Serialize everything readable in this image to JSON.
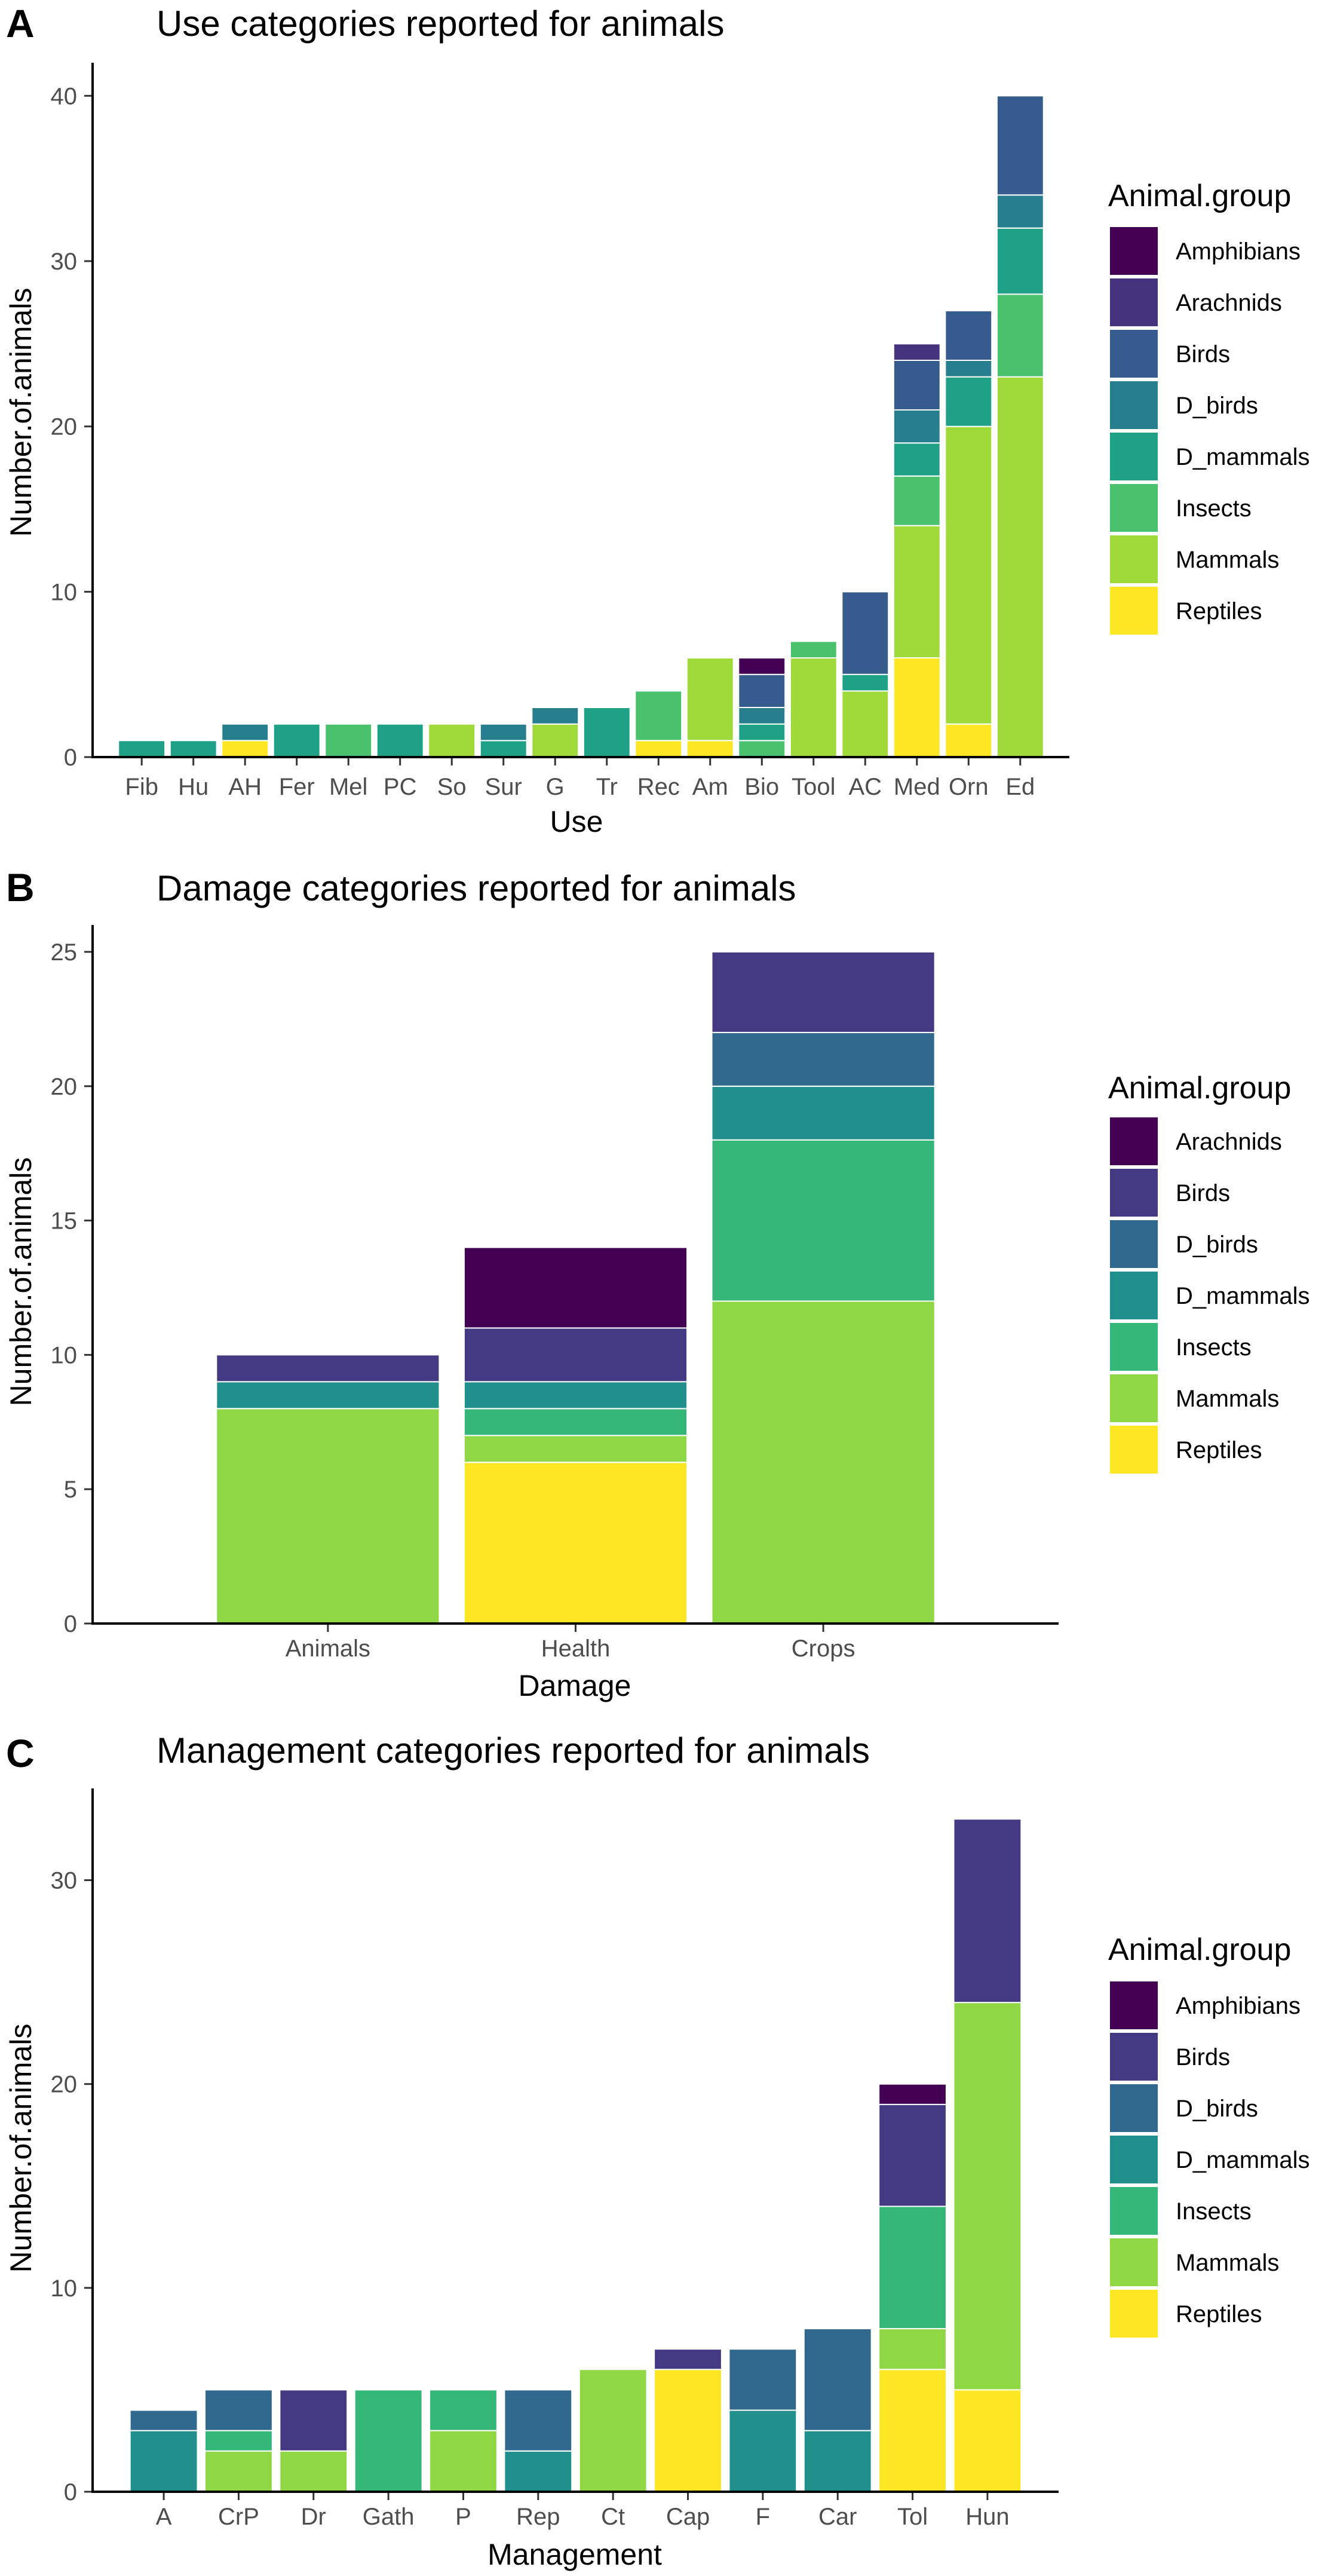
{
  "colors": {
    "Amphibians": "#440154",
    "Arachnids": "#46337E",
    "Birds": "#365C8D",
    "D_birds": "#277F8E",
    "D_mammals": "#1FA187",
    "Insects": "#4AC16D",
    "Mammals": "#9FDA3A",
    "Reptiles": "#FDE725",
    "B.Arachnids": "#440154",
    "B.Birds": "#443A83",
    "B.D_birds": "#31688E",
    "B.D_mammals": "#21908D",
    "B.Insects": "#35B779",
    "B.Mammals": "#8FD744",
    "B.Reptiles": "#FDE725",
    "C.Amphibians": "#440154",
    "C.Birds": "#443A83",
    "C.D_birds": "#31688E",
    "C.D_mammals": "#21908D",
    "C.Insects": "#35B779",
    "C.Mammals": "#8FD744",
    "C.Reptiles": "#FDE725"
  },
  "chart_data": [
    {
      "panel": "A",
      "type": "bar",
      "stacked": true,
      "title": "Use categories reported for animals",
      "xlabel": "Use",
      "ylabel": "Number.of.animals",
      "ylim": [
        0,
        42
      ],
      "yticks": [
        0,
        10,
        20,
        30,
        40
      ],
      "legend_title": "Animal.group",
      "legend_position": "right",
      "categories": [
        "Fib",
        "Hu",
        "AH",
        "Fer",
        "Mel",
        "PC",
        "So",
        "Sur",
        "G",
        "Tr",
        "Rec",
        "Am",
        "Bio",
        "Tool",
        "AC",
        "Med",
        "Orn",
        "Ed"
      ],
      "series": [
        {
          "name": "Amphibians",
          "color_key": "Amphibians",
          "values": [
            0,
            0,
            0,
            0,
            0,
            0,
            0,
            0,
            0,
            0,
            0,
            0,
            1,
            0,
            0,
            0,
            0,
            0
          ]
        },
        {
          "name": "Arachnids",
          "color_key": "Arachnids",
          "values": [
            0,
            0,
            0,
            0,
            0,
            0,
            0,
            0,
            0,
            0,
            0,
            0,
            0,
            0,
            0,
            1,
            0,
            0
          ]
        },
        {
          "name": "Birds",
          "color_key": "Birds",
          "values": [
            0,
            0,
            0,
            0,
            0,
            0,
            0,
            0,
            0,
            0,
            0,
            0,
            2,
            0,
            5,
            3,
            3,
            6
          ]
        },
        {
          "name": "D_birds",
          "color_key": "D_birds",
          "values": [
            0,
            0,
            1,
            0,
            0,
            0,
            0,
            1,
            1,
            0,
            0,
            0,
            1,
            0,
            0,
            2,
            1,
            2
          ]
        },
        {
          "name": "D_mammals",
          "color_key": "D_mammals",
          "values": [
            1,
            1,
            0,
            2,
            0,
            2,
            0,
            1,
            0,
            3,
            0,
            0,
            1,
            0,
            1,
            2,
            3,
            4
          ]
        },
        {
          "name": "Insects",
          "color_key": "Insects",
          "values": [
            0,
            0,
            0,
            0,
            2,
            0,
            0,
            0,
            0,
            0,
            3,
            0,
            1,
            1,
            0,
            3,
            0,
            5
          ]
        },
        {
          "name": "Mammals",
          "color_key": "Mammals",
          "values": [
            0,
            0,
            0,
            0,
            0,
            0,
            2,
            0,
            2,
            0,
            0,
            5,
            0,
            6,
            4,
            8,
            18,
            23
          ]
        },
        {
          "name": "Reptiles",
          "color_key": "Reptiles",
          "values": [
            0,
            0,
            1,
            0,
            0,
            0,
            0,
            0,
            0,
            0,
            1,
            1,
            0,
            0,
            0,
            6,
            2,
            0
          ]
        }
      ]
    },
    {
      "panel": "B",
      "type": "bar",
      "stacked": true,
      "title": "Damage categories reported for animals",
      "xlabel": "Damage",
      "ylabel": "Number.of.animals",
      "ylim": [
        0,
        26
      ],
      "yticks": [
        0,
        5,
        10,
        15,
        20,
        25
      ],
      "legend_title": "Animal.group",
      "legend_position": "right",
      "categories": [
        "Animals",
        "Health",
        "Crops"
      ],
      "series": [
        {
          "name": "Arachnids",
          "color_key": "B.Arachnids",
          "values": [
            0,
            3,
            0
          ]
        },
        {
          "name": "Birds",
          "color_key": "B.Birds",
          "values": [
            1,
            2,
            3
          ]
        },
        {
          "name": "D_birds",
          "color_key": "B.D_birds",
          "values": [
            0,
            0,
            2
          ]
        },
        {
          "name": "D_mammals",
          "color_key": "B.D_mammals",
          "values": [
            1,
            1,
            2
          ]
        },
        {
          "name": "Insects",
          "color_key": "B.Insects",
          "values": [
            0,
            1,
            6
          ]
        },
        {
          "name": "Mammals",
          "color_key": "B.Mammals",
          "values": [
            8,
            1,
            12
          ]
        },
        {
          "name": "Reptiles",
          "color_key": "B.Reptiles",
          "values": [
            0,
            6,
            0
          ]
        }
      ]
    },
    {
      "panel": "C",
      "type": "bar",
      "stacked": true,
      "title": "Management categories reported for animals",
      "xlabel": "Management",
      "ylabel": "Number.of.animals",
      "ylim": [
        0,
        34.5
      ],
      "yticks": [
        0,
        10,
        20,
        30
      ],
      "legend_title": "Animal.group",
      "legend_position": "right",
      "categories": [
        "A",
        "CrP",
        "Dr",
        "Gath",
        "P",
        "Rep",
        "Ct",
        "Cap",
        "F",
        "Car",
        "Tol",
        "Hun"
      ],
      "series": [
        {
          "name": "Amphibians",
          "color_key": "C.Amphibians",
          "values": [
            0,
            0,
            0,
            0,
            0,
            0,
            0,
            0,
            0,
            0,
            1,
            0
          ]
        },
        {
          "name": "Birds",
          "color_key": "C.Birds",
          "values": [
            0,
            0,
            3,
            0,
            0,
            0,
            0,
            1,
            0,
            0,
            5,
            9
          ]
        },
        {
          "name": "D_birds",
          "color_key": "C.D_birds",
          "values": [
            1,
            2,
            0,
            0,
            0,
            3,
            0,
            0,
            3,
            5,
            0,
            0
          ]
        },
        {
          "name": "D_mammals",
          "color_key": "C.D_mammals",
          "values": [
            3,
            0,
            0,
            0,
            0,
            2,
            0,
            0,
            4,
            3,
            0,
            0
          ]
        },
        {
          "name": "Insects",
          "color_key": "C.Insects",
          "values": [
            0,
            1,
            0,
            5,
            2,
            0,
            0,
            0,
            0,
            0,
            6,
            0
          ]
        },
        {
          "name": "Mammals",
          "color_key": "C.Mammals",
          "values": [
            0,
            2,
            2,
            0,
            3,
            0,
            6,
            0,
            0,
            0,
            2,
            19
          ]
        },
        {
          "name": "Reptiles",
          "color_key": "C.Reptiles",
          "values": [
            0,
            0,
            0,
            0,
            0,
            0,
            0,
            6,
            0,
            0,
            6,
            5
          ]
        }
      ]
    }
  ]
}
